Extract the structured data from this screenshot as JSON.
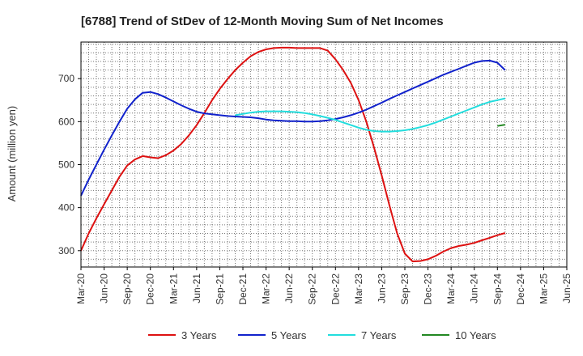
{
  "chart_data": {
    "type": "line",
    "title": "[6788]  Trend of StDev of 12-Month Moving Sum of Net Incomes",
    "xlabel": "",
    "ylabel": "Amount (million yen)",
    "x_ticks": [
      "Mar-20",
      "Jun-20",
      "Sep-20",
      "Dec-20",
      "Mar-21",
      "Jun-21",
      "Sep-21",
      "Dec-21",
      "Mar-22",
      "Jun-22",
      "Sep-22",
      "Dec-22",
      "Mar-23",
      "Jun-23",
      "Sep-23",
      "Dec-23",
      "Mar-24",
      "Jun-24",
      "Sep-24",
      "Dec-24",
      "Mar-25",
      "Jun-25"
    ],
    "y_ticks": [
      300,
      400,
      500,
      600,
      700
    ],
    "ylim": [
      262,
      785
    ],
    "grid": true,
    "legend_position": "bottom",
    "series": [
      {
        "name": "3 Years",
        "color": "#dd1111",
        "start_index": 0,
        "values": [
          300,
          340,
          375,
          408,
          440,
          472,
          498,
          512,
          520,
          517,
          515,
          522,
          533,
          548,
          568,
          592,
          620,
          650,
          676,
          699,
          720,
          737,
          752,
          762,
          768,
          771,
          772,
          772,
          771,
          771,
          771,
          771,
          765,
          745,
          720,
          690,
          650,
          600,
          540,
          475,
          405,
          340,
          293,
          275,
          276,
          280,
          288,
          298,
          306,
          311,
          314,
          318,
          324,
          330,
          336,
          341
        ]
      },
      {
        "name": "5 Years",
        "color": "#1122cc",
        "start_index": 0,
        "values": [
          428,
          465,
          500,
          535,
          568,
          600,
          630,
          652,
          667,
          669,
          664,
          656,
          647,
          638,
          630,
          623,
          619,
          617,
          615,
          613,
          612,
          611,
          610,
          608,
          605,
          603,
          602,
          601,
          601,
          600,
          600,
          601,
          603,
          606,
          610,
          615,
          621,
          628,
          636,
          644,
          653,
          661,
          669,
          677,
          685,
          693,
          701,
          709,
          716,
          723,
          730,
          737,
          741,
          742,
          737,
          720
        ]
      },
      {
        "name": "7 Years",
        "color": "#22dddd",
        "start_index": 20,
        "values": [
          615,
          618,
          621,
          623,
          624,
          624,
          624,
          623,
          622,
          620,
          617,
          613,
          609,
          604,
          598,
          592,
          586,
          581,
          578,
          577,
          577,
          578,
          580,
          583,
          587,
          592,
          598,
          605,
          612,
          619,
          626,
          633,
          640,
          646,
          650,
          654
        ]
      },
      {
        "name": "10 Years",
        "color": "#228822",
        "start_index": 54,
        "values": [
          590,
          593
        ]
      }
    ]
  }
}
